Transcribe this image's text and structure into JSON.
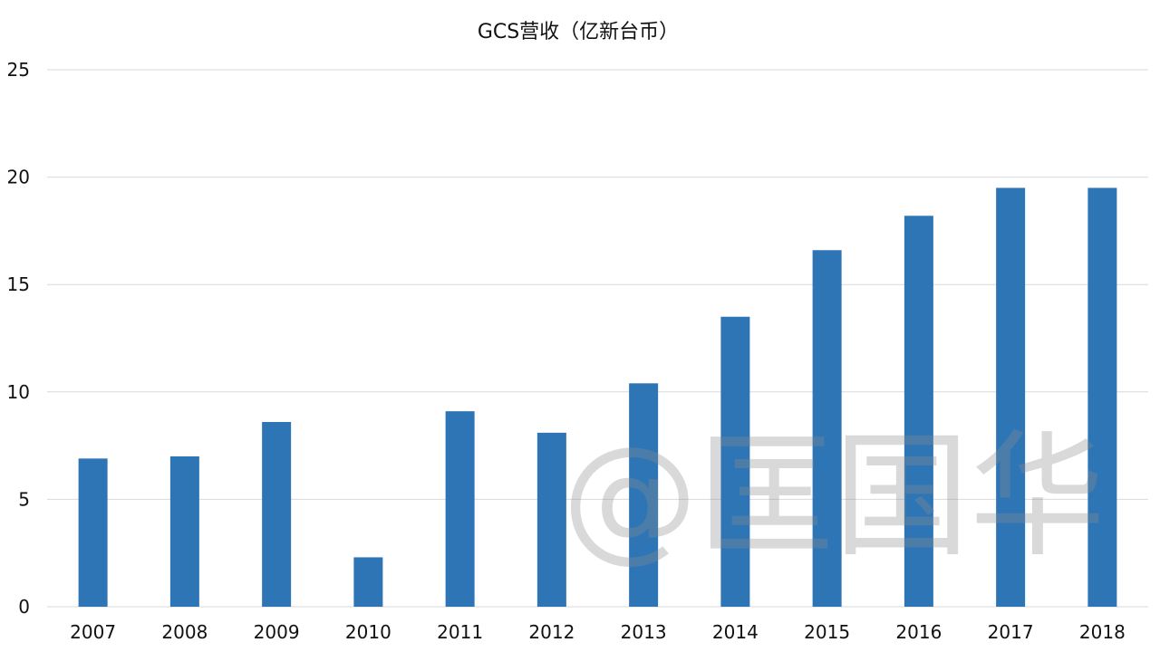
{
  "chart_data": {
    "type": "bar",
    "title": "GCS营收（亿新台币）",
    "xlabel": "",
    "ylabel": "",
    "categories": [
      "2007",
      "2008",
      "2009",
      "2010",
      "2011",
      "2012",
      "2013",
      "2014",
      "2015",
      "2016",
      "2017",
      "2018"
    ],
    "values": [
      6.9,
      7.0,
      8.6,
      2.3,
      9.1,
      8.1,
      10.4,
      13.5,
      16.6,
      18.2,
      19.5,
      19.5
    ],
    "ylim": [
      0,
      25
    ],
    "yticks": [
      0,
      5,
      10,
      15,
      20,
      25
    ],
    "grid": true,
    "legend": "none",
    "bar_color": "#2e75b6"
  },
  "watermark": {
    "text": "@匡国华"
  }
}
